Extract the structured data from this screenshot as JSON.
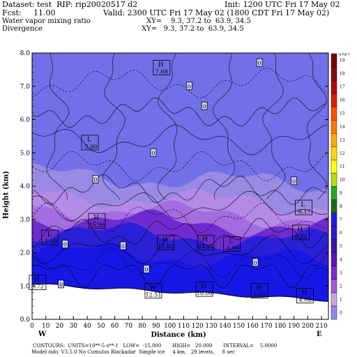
{
  "header": {
    "dataset": "Dataset: test  RIP: rip20020517 d2",
    "init": "Init: 1200 UTC Fri 17 May 02",
    "fcst": "Fcst:     11.00",
    "valid": "Valid: 2300 UTC Fri 17 May 02 (1800 CDT Fri 17 May 02)",
    "field1": "Water vapor mixing ratio",
    "xy1": "XY=    9.3, 37.2 to  63.9, 34.5",
    "field2": "Divergence",
    "xy2": "XY=   9.3, 37.2 to  63.9, 34.5"
  },
  "footer": {
    "line1": "CONTOURS:  UNITS=10**-5 s**-1   LOW=  -15.000       HIGH=   20.000       INTERVAL=    5.0000",
    "line2": "Model info: V3.5.0 No Cumulus Blackadar  Simple ice     4 km,   29 levels,     8 sec"
  },
  "chart_data": {
    "type": "heatmap",
    "ylabel": "Height (km)",
    "xlabel": "Distance (km)",
    "x_start_label": "W",
    "x_end_label": "E",
    "xlim": [
      0,
      215
    ],
    "ylim": [
      0,
      8
    ],
    "xticks": [
      0,
      10,
      20,
      30,
      40,
      50,
      60,
      70,
      80,
      90,
      100,
      110,
      120,
      130,
      140,
      150,
      160,
      170,
      180,
      190,
      200,
      210
    ],
    "yticks": [
      0.0,
      1.0,
      2.0,
      3.0,
      4.0,
      5.0,
      6.0,
      7.0,
      8.0
    ],
    "colorbar": {
      "unit": "g kg-1",
      "ticks": [
        0,
        1,
        2,
        3,
        4,
        5,
        6,
        7,
        8,
        9,
        10,
        11,
        12,
        13,
        14,
        15,
        16,
        17,
        18,
        19
      ],
      "colors": [
        "#8a8aea",
        "#c7a3e6",
        "#a25bd8",
        "#7b2bd3",
        "#5a16b8",
        "#3a12b4",
        "#2d1ad1",
        "#1c1ce6",
        "#1c6a1a",
        "#22aa22",
        "#b4dc10",
        "#ffff00",
        "#ffd700",
        "#ffaa00",
        "#ff7a00",
        "#ff5000",
        "#e01a0a",
        "#b00a0a",
        "#8a0a0a",
        "#7a0000"
      ]
    },
    "vapor_bands": [
      {
        "level": 0,
        "top_km": 8.0,
        "color": "#7270e8"
      },
      {
        "level": 1,
        "top_km": 4.2,
        "color": "#9a8ae6"
      },
      {
        "level": 2,
        "top_km": 3.6,
        "color": "#b48ae8"
      },
      {
        "level": 3,
        "top_km": 3.2,
        "color": "#a46ce0"
      },
      {
        "level": 5,
        "top_km": 2.9,
        "color": "#6f2bd0"
      },
      {
        "level": 7,
        "top_km": 2.5,
        "color": "#2a20d8"
      },
      {
        "level": 8,
        "top_km": 1.9,
        "color": "#1818e6"
      }
    ],
    "divergence_labels": [
      {
        "type": "H",
        "value": "7.68",
        "x": 94,
        "y": 7.55
      },
      {
        "type": "L",
        "value": "-5.00",
        "x": 42,
        "y": 5.3
      },
      {
        "type": "L",
        "value": "-6.17",
        "x": 197,
        "y": 3.35
      },
      {
        "type": "H",
        "value": "15.36",
        "x": 47,
        "y": 2.95
      },
      {
        "type": "L",
        "value": "-5.39",
        "x": 13,
        "y": 2.45
      },
      {
        "type": "H",
        "value": "11.82",
        "x": 97,
        "y": 2.3
      },
      {
        "type": "H",
        "value": "24.24",
        "x": 126,
        "y": 2.3
      },
      {
        "type": "L",
        "value": "-5.06",
        "x": 145,
        "y": 2.25
      },
      {
        "type": "H",
        "value": "6.32",
        "x": 195,
        "y": 2.6
      },
      {
        "type": "H",
        "value": "3.72",
        "x": 4,
        "y": 1.1
      },
      {
        "type": "H",
        "value": "12.51",
        "x": 88,
        "y": 0.85
      },
      {
        "type": "H",
        "value": "10.06",
        "x": 125,
        "y": 0.9
      },
      {
        "type": "H",
        "value": "5.02",
        "x": 165,
        "y": 0.85
      },
      {
        "type": "H",
        "value": "4.02",
        "x": 198,
        "y": 0.7
      }
    ],
    "zero_labels": [
      {
        "x": 165,
        "y": 7.7
      },
      {
        "x": 114,
        "y": 7.0
      },
      {
        "x": 125,
        "y": 6.4
      },
      {
        "x": 88,
        "y": 5.0
      },
      {
        "x": 46,
        "y": 4.2
      },
      {
        "x": 190,
        "y": 4.15
      },
      {
        "x": 24,
        "y": 2.25
      },
      {
        "x": 66,
        "y": 2.2
      },
      {
        "x": 162,
        "y": 1.7
      },
      {
        "x": 83,
        "y": 1.5
      },
      {
        "x": 21,
        "y": 1.05
      }
    ]
  }
}
